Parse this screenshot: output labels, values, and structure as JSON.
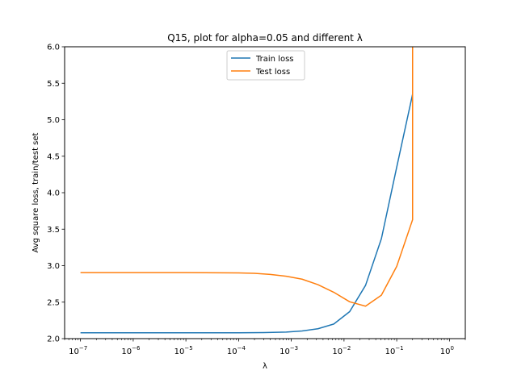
{
  "chart_data": {
    "type": "line",
    "title": "Q15, plot for alpha=0.05 and different λ",
    "xlabel": "λ",
    "ylabel": "Avg square loss, train/test set",
    "x_scale": "log",
    "xlim": [
      5e-08,
      2
    ],
    "ylim": [
      2.0,
      6.0
    ],
    "x_ticks": [
      {
        "value": 1e-07,
        "base": "10",
        "exp": "−7"
      },
      {
        "value": 1e-06,
        "base": "10",
        "exp": "−6"
      },
      {
        "value": 1e-05,
        "base": "10",
        "exp": "−5"
      },
      {
        "value": 0.0001,
        "base": "10",
        "exp": "−4"
      },
      {
        "value": 0.001,
        "base": "10",
        "exp": "−3"
      },
      {
        "value": 0.01,
        "base": "10",
        "exp": "−2"
      },
      {
        "value": 0.1,
        "base": "10",
        "exp": "−1"
      },
      {
        "value": 1,
        "base": "10",
        "exp": "0"
      }
    ],
    "y_ticks": [
      "2.0",
      "2.5",
      "3.0",
      "3.5",
      "4.0",
      "4.5",
      "5.0",
      "5.5",
      "6.0"
    ],
    "legend_position": "top-center",
    "series": [
      {
        "name": "Train loss",
        "color": "#1f77b4",
        "x": [
          1e-07,
          1e-06,
          1e-05,
          0.0001,
          0.0003,
          0.0008,
          0.0016,
          0.0032,
          0.0064,
          0.0128,
          0.0256,
          0.0512,
          0.1,
          0.2
        ],
        "y": [
          2.08,
          2.08,
          2.08,
          2.08,
          2.083,
          2.09,
          2.105,
          2.135,
          2.2,
          2.37,
          2.73,
          3.37,
          4.35,
          5.35
        ]
      },
      {
        "name": "Test loss",
        "color": "#ff7f0e",
        "x": [
          1e-07,
          1e-06,
          1e-05,
          0.0001,
          0.0002,
          0.0004,
          0.0008,
          0.0016,
          0.0032,
          0.0064,
          0.0128,
          0.0256,
          0.0512,
          0.1,
          0.2,
          0.2,
          0.2
        ],
        "y": [
          2.905,
          2.905,
          2.905,
          2.9,
          2.895,
          2.88,
          2.855,
          2.815,
          2.74,
          2.635,
          2.505,
          2.445,
          2.595,
          2.99,
          3.63,
          4.5,
          6.2
        ]
      }
    ]
  }
}
